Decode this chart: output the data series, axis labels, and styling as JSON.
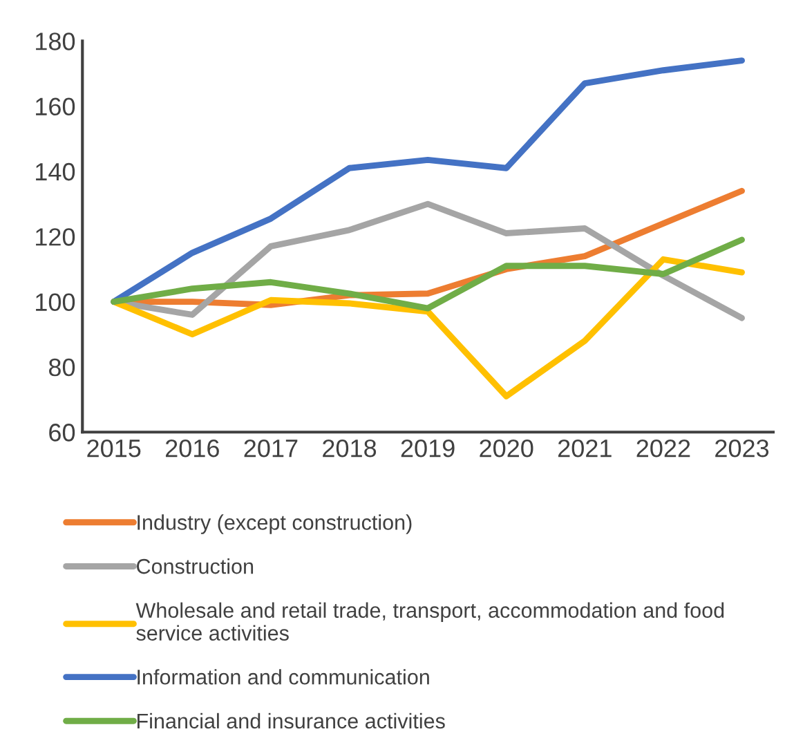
{
  "chart_data": {
    "type": "line",
    "categories": [
      "2015",
      "2016",
      "2017",
      "2018",
      "2019",
      "2020",
      "2021",
      "2022",
      "2023"
    ],
    "series": [
      {
        "name": "Industry (except construction)",
        "color": "#ed7d31",
        "values": [
          100,
          100,
          99,
          102,
          102.5,
          110,
          114,
          124,
          134
        ]
      },
      {
        "name": "Construction",
        "color": "#a5a5a5",
        "values": [
          100,
          96,
          117,
          122,
          130,
          121,
          122.5,
          108,
          95
        ]
      },
      {
        "name": "Wholesale and retail trade, transport, accommodation and food service activities",
        "color": "#ffc000",
        "values": [
          100,
          90,
          100.5,
          99.5,
          97,
          71,
          88,
          113,
          109
        ]
      },
      {
        "name": "Information and communication",
        "color": "#4472c4",
        "values": [
          100,
          115,
          125.5,
          141,
          143.5,
          141,
          167,
          171,
          174
        ]
      },
      {
        "name": "Financial and insurance activities",
        "color": "#70ad47",
        "values": [
          100,
          104,
          106,
          102.5,
          98,
          111,
          111,
          108.5,
          119
        ]
      }
    ],
    "ylim": [
      60,
      180
    ],
    "yticks": [
      60,
      80,
      100,
      120,
      140,
      160,
      180
    ],
    "grid": false,
    "legend": "bottom",
    "marker": "none",
    "line_style": "solid"
  }
}
